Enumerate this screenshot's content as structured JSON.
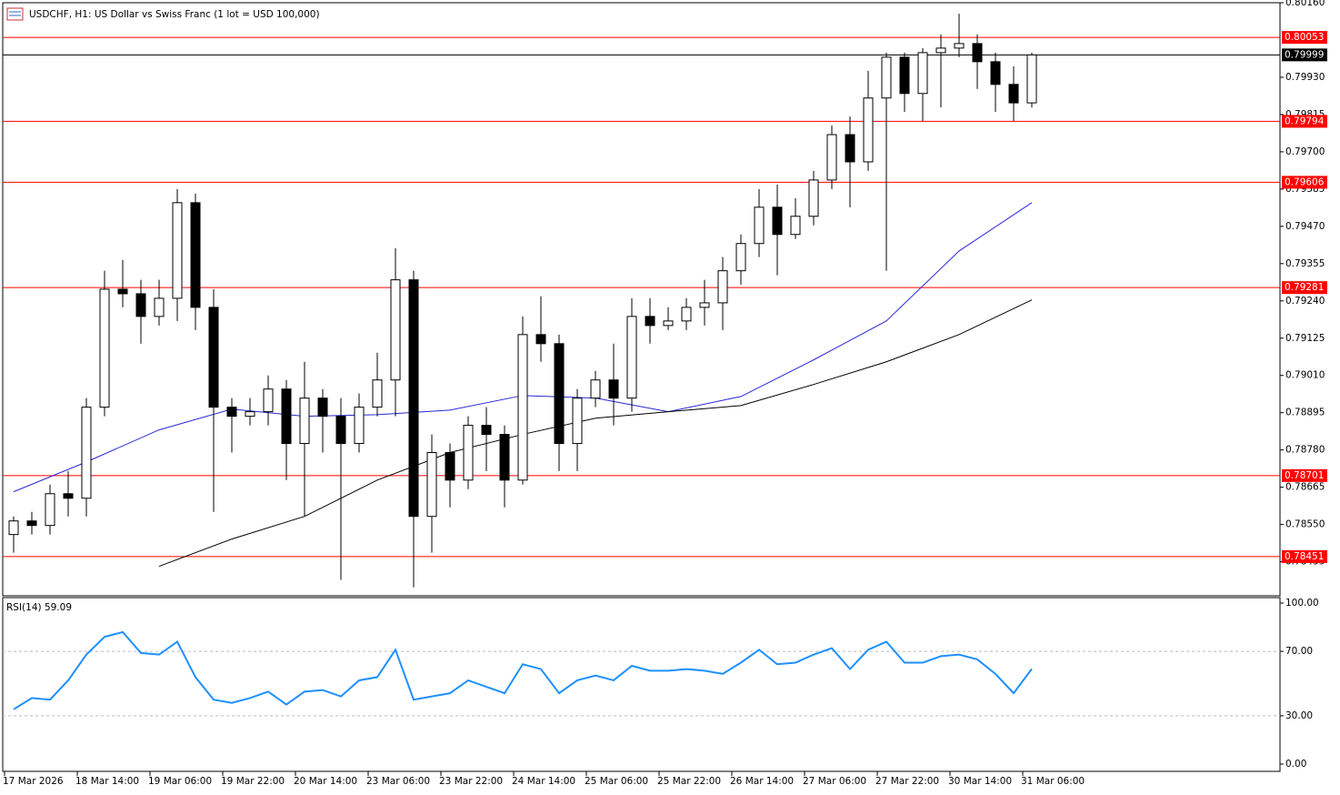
{
  "chart_data": [
    {
      "type": "candlestick",
      "title": "USDCHF, H1: US Dollar vs Swiss Franc (1 lot = USD 100,000)",
      "ylim": [
        0.7833,
        0.8016
      ],
      "yticks": [
        {
          "value": 0.8016,
          "label": "0.80160"
        },
        {
          "value": 0.7993,
          "label": "0.79930"
        },
        {
          "value": 0.79815,
          "label": "0.79815"
        },
        {
          "value": 0.797,
          "label": "0.79700"
        },
        {
          "value": 0.79585,
          "label": "0.79585"
        },
        {
          "value": 0.7947,
          "label": "0.79470"
        },
        {
          "value": 0.79355,
          "label": "0.79355"
        },
        {
          "value": 0.7924,
          "label": "0.79240"
        },
        {
          "value": 0.79125,
          "label": "0.79125"
        },
        {
          "value": 0.7901,
          "label": "0.79010"
        },
        {
          "value": 0.78895,
          "label": "0.78895"
        },
        {
          "value": 0.7878,
          "label": "0.78780"
        },
        {
          "value": 0.78665,
          "label": "0.78665"
        },
        {
          "value": 0.7855,
          "label": "0.78550"
        },
        {
          "value": 0.78435,
          "label": "0.78435"
        }
      ],
      "xticks": [
        {
          "value": 0,
          "label": "17 Mar 2026"
        },
        {
          "value": 4,
          "label": "18 Mar 14:00"
        },
        {
          "value": 8,
          "label": "19 Mar 06:00"
        },
        {
          "value": 12,
          "label": "19 Mar 22:00"
        },
        {
          "value": 16,
          "label": "20 Mar 14:00"
        },
        {
          "value": 20,
          "label": "23 Mar 06:00"
        },
        {
          "value": 24,
          "label": "23 Mar 22:00"
        },
        {
          "value": 28,
          "label": "24 Mar 14:00"
        },
        {
          "value": 32,
          "label": "25 Mar 06:00"
        },
        {
          "value": 36,
          "label": "25 Mar 22:00"
        },
        {
          "value": 40,
          "label": "26 Mar 14:00"
        },
        {
          "value": 44,
          "label": "27 Mar 06:00"
        },
        {
          "value": 48,
          "label": "27 Mar 22:00"
        },
        {
          "value": 52,
          "label": "30 Mar 14:00"
        },
        {
          "value": 56,
          "label": "31 Mar 06:00"
        }
      ],
      "open": [
        0.78519,
        0.78561,
        0.78547,
        0.78645,
        0.78631,
        0.78912,
        0.79276,
        0.79262,
        0.79192,
        0.79248,
        0.79543,
        0.7922,
        0.78912,
        0.78884,
        0.78898,
        0.78968,
        0.788,
        0.7894,
        0.78884,
        0.788,
        0.78912,
        0.78996,
        0.79305,
        0.78575,
        0.78772,
        0.78687,
        0.78856,
        0.78828,
        0.78687,
        0.79136,
        0.79108,
        0.788,
        0.7894,
        0.78996,
        0.7894,
        0.79192,
        0.79164,
        0.79178,
        0.7922,
        0.79234,
        0.79333,
        0.79417,
        0.79529,
        0.79445,
        0.79501,
        0.79613,
        0.79753,
        0.79669,
        0.79866,
        0.79992,
        0.7988,
        0.80006,
        0.8002,
        0.80034,
        0.79978,
        0.79908,
        0.79851
      ],
      "high": [
        0.78575,
        0.78589,
        0.78673,
        0.78715,
        0.7894,
        0.79333,
        0.79366,
        0.79305,
        0.79305,
        0.79585,
        0.79571,
        0.79276,
        0.7894,
        0.7894,
        0.7901,
        0.78996,
        0.79052,
        0.78968,
        0.7894,
        0.78954,
        0.7908,
        0.79403,
        0.79333,
        0.78828,
        0.788,
        0.78884,
        0.78912,
        0.78856,
        0.79192,
        0.79254,
        0.79136,
        0.78968,
        0.79024,
        0.79108,
        0.79248,
        0.79248,
        0.7922,
        0.79248,
        0.79305,
        0.79375,
        0.79445,
        0.79585,
        0.79599,
        0.79557,
        0.79641,
        0.79781,
        0.79809,
        0.7995,
        0.80006,
        0.80006,
        0.8002,
        0.80062,
        0.80126,
        0.80062,
        0.80006,
        0.79964,
        0.80006
      ],
      "low": [
        0.78463,
        0.78519,
        0.78519,
        0.78575,
        0.78575,
        0.78884,
        0.7922,
        0.79108,
        0.79164,
        0.79178,
        0.7915,
        0.78589,
        0.78772,
        0.78856,
        0.78856,
        0.78687,
        0.78575,
        0.78772,
        0.78379,
        0.78772,
        0.78884,
        0.78884,
        0.78356,
        0.78463,
        0.78603,
        0.78659,
        0.78715,
        0.78603,
        0.78673,
        0.79052,
        0.78715,
        0.78715,
        0.78912,
        0.78856,
        0.78898,
        0.79108,
        0.7915,
        0.7915,
        0.79164,
        0.7915,
        0.7929,
        0.79375,
        0.79319,
        0.79431,
        0.79473,
        0.79585,
        0.79529,
        0.79641,
        0.79333,
        0.79823,
        0.79795,
        0.79837,
        0.79992,
        0.79894,
        0.79823,
        0.79795,
        0.79837
      ],
      "close": [
        0.78561,
        0.78547,
        0.78645,
        0.78631,
        0.78912,
        0.79276,
        0.79262,
        0.79192,
        0.79248,
        0.79543,
        0.7922,
        0.78912,
        0.78884,
        0.78898,
        0.78968,
        0.788,
        0.7894,
        0.78884,
        0.788,
        0.78912,
        0.78996,
        0.79305,
        0.78575,
        0.78772,
        0.78687,
        0.78856,
        0.78828,
        0.78687,
        0.79136,
        0.79108,
        0.788,
        0.7894,
        0.78996,
        0.7894,
        0.79192,
        0.79164,
        0.79178,
        0.7922,
        0.79234,
        0.79333,
        0.79417,
        0.79529,
        0.79445,
        0.79501,
        0.79613,
        0.79753,
        0.79669,
        0.79866,
        0.79992,
        0.7988,
        0.80006,
        0.8002,
        0.80034,
        0.79978,
        0.79908,
        0.79851,
        0.79999
      ],
      "bull_color": "#ffffff",
      "bear_color": "#000000",
      "outline_color": "#000000",
      "series": [
        {
          "color": "#2727d4",
          "x": [
            0,
            4,
            8,
            12,
            16,
            20,
            24,
            28,
            32,
            36,
            40,
            44,
            48,
            52,
            56
          ],
          "values": [
            0.78651,
            0.78743,
            0.78842,
            0.78906,
            0.78884,
            0.78889,
            0.78903,
            0.78948,
            0.7894,
            0.78898,
            0.78945,
            0.79058,
            0.79178,
            0.79394,
            0.79543
          ]
        },
        {
          "color": "#000000",
          "x": [
            0,
            4,
            8,
            12,
            16,
            20,
            24,
            28,
            32,
            36,
            40,
            44,
            48,
            52,
            56
          ],
          "values": [
            null,
            null,
            0.78421,
            0.78505,
            0.78575,
            0.78687,
            0.78772,
            0.78828,
            0.78878,
            0.78898,
            0.78917,
            0.78982,
            0.79052,
            0.79136,
            0.79243
          ]
        }
      ],
      "levels": [
        0.80053,
        0.79794,
        0.79606,
        0.79281,
        0.78701,
        0.78451
      ],
      "level_color": "#ff0000",
      "current_price": 0.79999
    },
    {
      "type": "line",
      "title": "RSI(14) 59.09",
      "ylim": [
        0,
        100
      ],
      "yticks": [
        {
          "value": 100,
          "label": "100.00"
        },
        {
          "value": 70,
          "label": "70.00"
        },
        {
          "value": 30,
          "label": "30.00"
        },
        {
          "value": 0,
          "label": "0.00"
        }
      ],
      "levels": [
        70,
        30
      ],
      "color": "#1e90ff",
      "values": [
        34,
        41,
        40,
        52,
        68,
        79,
        82,
        69,
        68,
        76,
        54,
        40,
        38,
        41,
        45,
        37,
        45,
        46,
        42,
        52,
        54,
        71,
        40,
        42,
        44,
        52,
        48,
        44,
        62,
        59,
        44,
        52,
        55,
        52,
        61,
        58,
        58,
        59,
        58,
        56,
        63,
        71,
        62,
        63,
        68,
        72,
        59,
        71,
        76,
        63,
        63,
        67,
        68,
        65,
        56,
        44,
        59.09
      ]
    }
  ]
}
